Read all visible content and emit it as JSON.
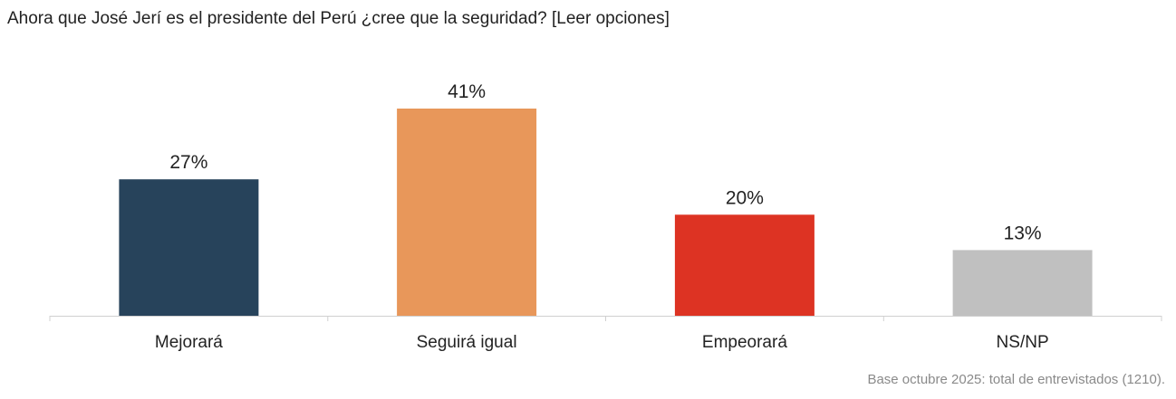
{
  "title": "Ahora que José Jerí es el presidente del Perú ¿cree que la seguridad? [Leer opciones]",
  "footnote": "Base octubre 2025: total de entrevistados (1210).",
  "chart_data": {
    "type": "bar",
    "title": "Ahora que José Jerí es el presidente del Perú ¿cree que la seguridad? [Leer opciones]",
    "categories": [
      "Mejorará",
      "Seguirá igual",
      "Empeorará",
      "NS/NP"
    ],
    "values": [
      27,
      41,
      20,
      13
    ],
    "value_labels": [
      "27%",
      "41%",
      "20%",
      "13%"
    ],
    "colors": [
      "#27435b",
      "#e8975a",
      "#dd3323",
      "#c0c0c0"
    ],
    "xlabel": "",
    "ylabel": "",
    "unit": "%",
    "grid": false,
    "legend": "none"
  }
}
